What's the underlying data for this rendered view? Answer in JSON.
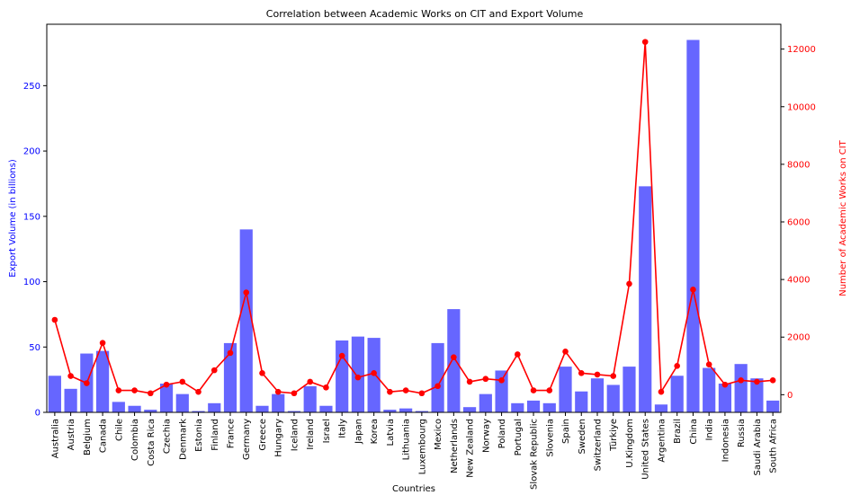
{
  "chart_data": {
    "type": "bar",
    "title": "Correlation between Academic Works on CIT and Export Volume",
    "xlabel": "Countries",
    "ylabel_left": "Export Volume (in billions)",
    "ylabel_right": "Number of Academic Works on CIT",
    "categories": [
      "Australia",
      "Austria",
      "Belgium",
      "Canada",
      "Chile",
      "Colombia",
      "Costa Rica",
      "Czechia",
      "Denmark",
      "Estonia",
      "Finland",
      "France",
      "Germany",
      "Greece",
      "Hungary",
      "Iceland",
      "Ireland",
      "Israel",
      "Italy",
      "Japan",
      "Korea",
      "Latvia",
      "Lithuania",
      "Luxembourg",
      "Mexico",
      "Netherlands",
      "New Zealand",
      "Norway",
      "Poland",
      "Portugal",
      "Slovak Republic",
      "Slovenia",
      "Spain",
      "Sweden",
      "Switzerland",
      "Türkiye",
      "U.Kingdom",
      "United States",
      "Argentina",
      "Brazil",
      "China",
      "India",
      "Indonesia",
      "Russia",
      "Saudi Arabia",
      "South Africa"
    ],
    "series": [
      {
        "name": "Export Volume (in billions)",
        "axis": "left",
        "type": "bar",
        "color": "#6666ff",
        "values": [
          28,
          18,
          45,
          47,
          8,
          5,
          2,
          22,
          14,
          1,
          7,
          53,
          140,
          5,
          14,
          1,
          20,
          5,
          55,
          58,
          57,
          2,
          3,
          1,
          53,
          79,
          4,
          14,
          32,
          7,
          9,
          7,
          35,
          16,
          26,
          21,
          35,
          173,
          6,
          28,
          285,
          34,
          22,
          37,
          26,
          9
        ]
      },
      {
        "name": "Number of Academic Works on CIT",
        "axis": "right",
        "type": "line",
        "color": "#ff0000",
        "values": [
          2600,
          650,
          400,
          1800,
          150,
          150,
          50,
          350,
          450,
          100,
          850,
          1450,
          3550,
          750,
          100,
          50,
          450,
          250,
          1350,
          600,
          750,
          100,
          150,
          50,
          300,
          1300,
          450,
          550,
          500,
          1400,
          150,
          150,
          1500,
          750,
          700,
          650,
          3850,
          12250,
          100,
          1000,
          3650,
          1050,
          350,
          500,
          450,
          500
        ]
      }
    ],
    "ylim_left": [
      0,
      297
    ],
    "ylim_right": [
      -612.5,
      12862.5
    ],
    "yticks_left": [
      "0",
      "50",
      "100",
      "150",
      "200",
      "250"
    ],
    "yticks_right": [
      "0",
      "2000",
      "4000",
      "6000",
      "8000",
      "10000",
      "12000"
    ],
    "grid": false,
    "colors": {
      "left_axis": "#0000ff",
      "right_axis": "#ff0000"
    }
  }
}
